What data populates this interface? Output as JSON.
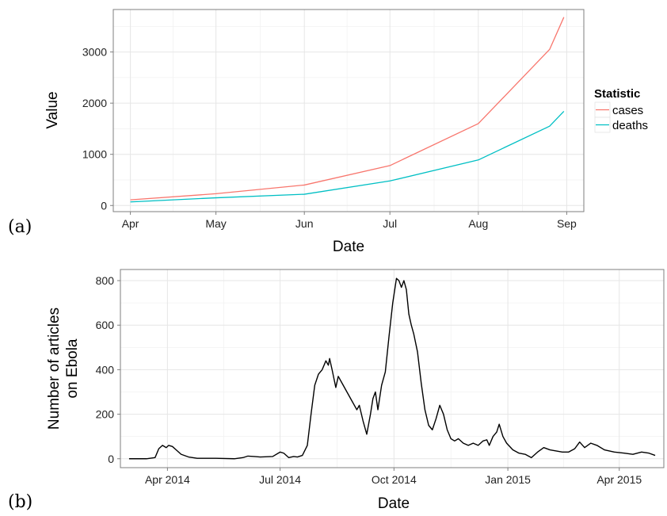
{
  "chart_data": [
    {
      "type": "line",
      "panel_label": "(a)",
      "xlabel": "Date",
      "ylabel": "Value",
      "x_ticks": [
        "Apr",
        "May",
        "Jun",
        "Jul",
        "Aug",
        "Sep"
      ],
      "x_tick_dates": [
        "2014-04-01",
        "2014-05-01",
        "2014-06-01",
        "2014-07-01",
        "2014-08-01",
        "2014-09-01"
      ],
      "xlim": [
        "2014-03-26",
        "2014-09-07"
      ],
      "y_ticks": [
        0,
        1000,
        2000,
        3000
      ],
      "ylim": [
        -120,
        3830
      ],
      "grid": true,
      "legend_title": "Statistic",
      "legend_position": "right",
      "series": [
        {
          "name": "cases",
          "color": "#F8766D",
          "points": [
            [
              "2014-04-01",
              110
            ],
            [
              "2014-05-01",
              230
            ],
            [
              "2014-06-01",
              400
            ],
            [
              "2014-07-01",
              780
            ],
            [
              "2014-08-01",
              1600
            ],
            [
              "2014-08-26",
              3050
            ],
            [
              "2014-08-31",
              3680
            ]
          ]
        },
        {
          "name": "deaths",
          "color": "#00BFC4",
          "points": [
            [
              "2014-04-01",
              70
            ],
            [
              "2014-05-01",
              150
            ],
            [
              "2014-06-01",
              220
            ],
            [
              "2014-07-01",
              480
            ],
            [
              "2014-08-01",
              890
            ],
            [
              "2014-08-26",
              1550
            ],
            [
              "2014-08-31",
              1840
            ]
          ]
        }
      ]
    },
    {
      "type": "line",
      "panel_label": "(b)",
      "xlabel": "Date",
      "ylabel_lines": [
        "Number of articles",
        "on Ebola"
      ],
      "x_ticks": [
        "Apr 2014",
        "Jul 2014",
        "Oct 2014",
        "Jan 2015",
        "Apr 2015"
      ],
      "x_tick_dates": [
        "2014-04-01",
        "2014-07-01",
        "2014-10-01",
        "2015-01-01",
        "2015-04-01"
      ],
      "xlim": [
        "2014-02-22",
        "2015-05-07"
      ],
      "y_ticks": [
        0,
        200,
        400,
        600,
        800
      ],
      "ylim": [
        -40,
        850
      ],
      "grid": true,
      "series": [
        {
          "name": "",
          "color": "#000000",
          "points": [
            [
              "2014-03-01",
              0
            ],
            [
              "2014-03-15",
              0
            ],
            [
              "2014-03-22",
              5
            ],
            [
              "2014-03-25",
              45
            ],
            [
              "2014-03-28",
              60
            ],
            [
              "2014-03-31",
              50
            ],
            [
              "2014-04-02",
              60
            ],
            [
              "2014-04-05",
              55
            ],
            [
              "2014-04-08",
              40
            ],
            [
              "2014-04-12",
              20
            ],
            [
              "2014-04-18",
              8
            ],
            [
              "2014-04-25",
              2
            ],
            [
              "2014-05-10",
              2
            ],
            [
              "2014-05-25",
              0
            ],
            [
              "2014-06-01",
              5
            ],
            [
              "2014-06-05",
              12
            ],
            [
              "2014-06-10",
              10
            ],
            [
              "2014-06-15",
              8
            ],
            [
              "2014-06-25",
              10
            ],
            [
              "2014-07-01",
              30
            ],
            [
              "2014-07-04",
              25
            ],
            [
              "2014-07-08",
              5
            ],
            [
              "2014-07-12",
              10
            ],
            [
              "2014-07-15",
              8
            ],
            [
              "2014-07-19",
              15
            ],
            [
              "2014-07-23",
              60
            ],
            [
              "2014-07-26",
              200
            ],
            [
              "2014-07-29",
              330
            ],
            [
              "2014-08-01",
              380
            ],
            [
              "2014-08-04",
              400
            ],
            [
              "2014-08-07",
              440
            ],
            [
              "2014-08-09",
              420
            ],
            [
              "2014-08-10",
              450
            ],
            [
              "2014-08-12",
              400
            ],
            [
              "2014-08-15",
              320
            ],
            [
              "2014-08-17",
              370
            ],
            [
              "2014-08-20",
              340
            ],
            [
              "2014-08-24",
              300
            ],
            [
              "2014-08-28",
              260
            ],
            [
              "2014-09-01",
              220
            ],
            [
              "2014-09-03",
              240
            ],
            [
              "2014-09-06",
              170
            ],
            [
              "2014-09-09",
              110
            ],
            [
              "2014-09-12",
              200
            ],
            [
              "2014-09-14",
              270
            ],
            [
              "2014-09-16",
              300
            ],
            [
              "2014-09-18",
              220
            ],
            [
              "2014-09-21",
              330
            ],
            [
              "2014-09-24",
              390
            ],
            [
              "2014-09-27",
              550
            ],
            [
              "2014-09-30",
              700
            ],
            [
              "2014-10-03",
              810
            ],
            [
              "2014-10-05",
              800
            ],
            [
              "2014-10-07",
              770
            ],
            [
              "2014-10-09",
              800
            ],
            [
              "2014-10-11",
              760
            ],
            [
              "2014-10-13",
              650
            ],
            [
              "2014-10-15",
              600
            ],
            [
              "2014-10-17",
              560
            ],
            [
              "2014-10-20",
              480
            ],
            [
              "2014-10-23",
              340
            ],
            [
              "2014-10-26",
              220
            ],
            [
              "2014-10-29",
              150
            ],
            [
              "2014-11-01",
              130
            ],
            [
              "2014-11-04",
              180
            ],
            [
              "2014-11-07",
              240
            ],
            [
              "2014-11-10",
              200
            ],
            [
              "2014-11-13",
              130
            ],
            [
              "2014-11-16",
              90
            ],
            [
              "2014-11-19",
              80
            ],
            [
              "2014-11-22",
              90
            ],
            [
              "2014-11-26",
              70
            ],
            [
              "2014-11-30",
              60
            ],
            [
              "2014-12-04",
              70
            ],
            [
              "2014-12-08",
              60
            ],
            [
              "2014-12-12",
              80
            ],
            [
              "2014-12-15",
              85
            ],
            [
              "2014-12-17",
              60
            ],
            [
              "2014-12-20",
              100
            ],
            [
              "2014-12-23",
              120
            ],
            [
              "2014-12-25",
              155
            ],
            [
              "2014-12-28",
              100
            ],
            [
              "2014-12-31",
              70
            ],
            [
              "2015-01-05",
              40
            ],
            [
              "2015-01-10",
              25
            ],
            [
              "2015-01-15",
              20
            ],
            [
              "2015-01-20",
              5
            ],
            [
              "2015-01-25",
              30
            ],
            [
              "2015-01-30",
              50
            ],
            [
              "2015-02-04",
              40
            ],
            [
              "2015-02-09",
              35
            ],
            [
              "2015-02-14",
              30
            ],
            [
              "2015-02-19",
              30
            ],
            [
              "2015-02-24",
              45
            ],
            [
              "2015-02-28",
              75
            ],
            [
              "2015-03-04",
              50
            ],
            [
              "2015-03-09",
              70
            ],
            [
              "2015-03-14",
              60
            ],
            [
              "2015-03-20",
              40
            ],
            [
              "2015-03-28",
              30
            ],
            [
              "2015-04-05",
              25
            ],
            [
              "2015-04-12",
              20
            ],
            [
              "2015-04-19",
              30
            ],
            [
              "2015-04-25",
              25
            ],
            [
              "2015-04-30",
              15
            ]
          ]
        }
      ]
    }
  ]
}
